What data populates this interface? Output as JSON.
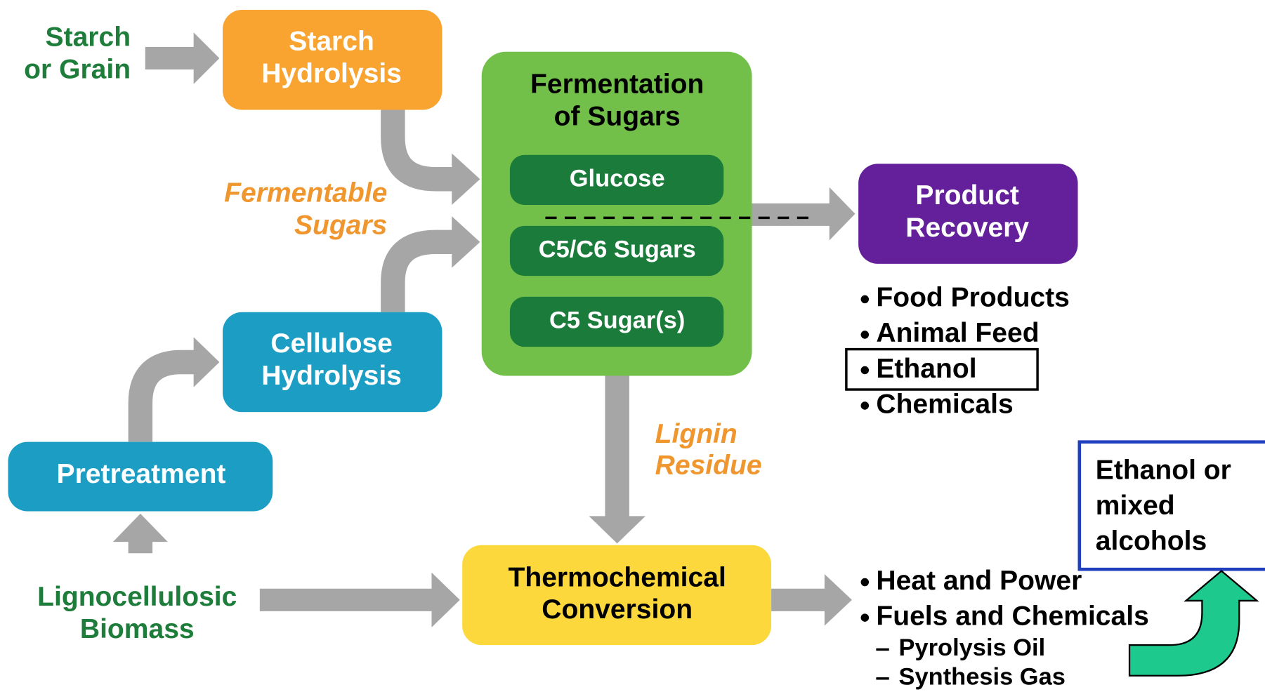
{
  "inputs": {
    "starch": [
      "Starch",
      "or Grain"
    ],
    "biomass": [
      "Lignocellulosic",
      "Biomass"
    ]
  },
  "nodes": {
    "starch_hydrolysis": [
      "Starch",
      "Hydrolysis"
    ],
    "cellulose_hydrolysis": [
      "Cellulose",
      "Hydrolysis"
    ],
    "pretreatment": "Pretreatment",
    "fermentation": [
      "Fermentation",
      "of Sugars"
    ],
    "glucose": "Glucose",
    "c5c6": "C5/C6 Sugars",
    "c5": "C5 Sugar(s)",
    "product_recovery": [
      "Product",
      "Recovery"
    ],
    "thermochemical": [
      "Thermochemical",
      "Conversion"
    ]
  },
  "labels": {
    "fermentable": [
      "Fermentable",
      "Sugars"
    ],
    "lignin": [
      "Lignin",
      "Residue"
    ]
  },
  "products": [
    "Food Products",
    "Animal Feed",
    "Ethanol",
    "Chemicals"
  ],
  "thermo_outputs": [
    "Heat and Power",
    "Fuels and Chemicals"
  ],
  "thermo_sub": [
    "Pyrolysis Oil",
    "Synthesis Gas"
  ],
  "callout": [
    "Ethanol or",
    "mixed",
    "alcohols"
  ]
}
